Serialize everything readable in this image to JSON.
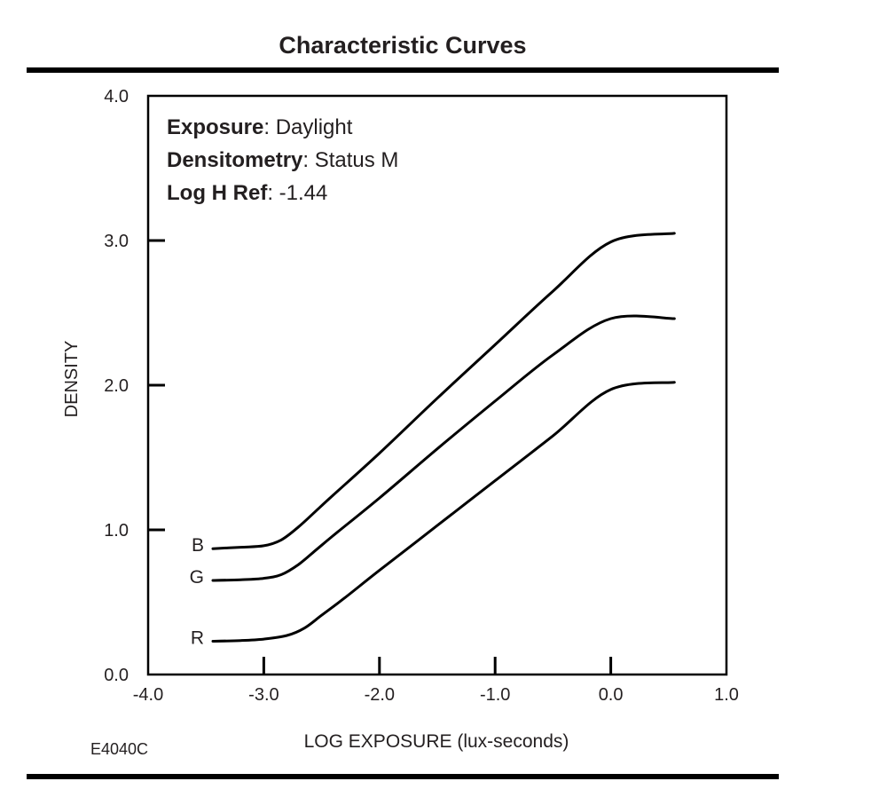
{
  "page": {
    "title": "Characteristic Curves",
    "code": "E4040C"
  },
  "chart_data": {
    "type": "line",
    "title": "Characteristic Curves",
    "xlabel": "LOG EXPOSURE (lux-seconds)",
    "ylabel": "DENSITY",
    "xlim": [
      -4.0,
      1.0
    ],
    "ylim": [
      0.0,
      4.0
    ],
    "x_ticks": [
      -4.0,
      -3.0,
      -2.0,
      -1.0,
      0.0,
      1.0
    ],
    "x_tick_labels": [
      "-4.0",
      "-3.0",
      "-2.0",
      "-1.0",
      "0.0",
      "1.0"
    ],
    "y_ticks": [
      0.0,
      1.0,
      2.0,
      3.0,
      4.0
    ],
    "y_tick_labels": [
      "0.0",
      "1.0",
      "2.0",
      "3.0",
      "4.0"
    ],
    "grid": false,
    "legend": "none",
    "line_color": "#000000",
    "annotations": [
      {
        "bold": "Exposure",
        "text": ": Daylight"
      },
      {
        "bold": "Densitometry",
        "text": ": Status M"
      },
      {
        "bold": "Log H Ref",
        "text": ": -1.44"
      }
    ],
    "series": [
      {
        "name": "B",
        "x": [
          -3.44,
          -3.2,
          -3.0,
          -2.85,
          -2.7,
          -2.55,
          -2.4,
          -2.0,
          -1.5,
          -1.0,
          -0.5,
          0.0,
          0.55
        ],
        "y": [
          0.87,
          0.88,
          0.89,
          0.93,
          1.02,
          1.13,
          1.24,
          1.53,
          1.91,
          2.28,
          2.65,
          2.99,
          3.05
        ]
      },
      {
        "name": "G",
        "x": [
          -3.44,
          -3.2,
          -3.0,
          -2.85,
          -2.7,
          -2.55,
          -2.4,
          -2.0,
          -1.5,
          -1.0,
          -0.5,
          0.0,
          0.55
        ],
        "y": [
          0.65,
          0.655,
          0.665,
          0.69,
          0.76,
          0.86,
          0.96,
          1.22,
          1.56,
          1.89,
          2.21,
          2.46,
          2.46
        ]
      },
      {
        "name": "R",
        "x": [
          -3.44,
          -3.2,
          -3.0,
          -2.8,
          -2.65,
          -2.5,
          -2.3,
          -2.0,
          -1.5,
          -1.0,
          -0.5,
          0.0,
          0.55
        ],
        "y": [
          0.23,
          0.235,
          0.245,
          0.27,
          0.32,
          0.41,
          0.53,
          0.72,
          1.03,
          1.34,
          1.65,
          1.97,
          2.02
        ]
      }
    ]
  }
}
